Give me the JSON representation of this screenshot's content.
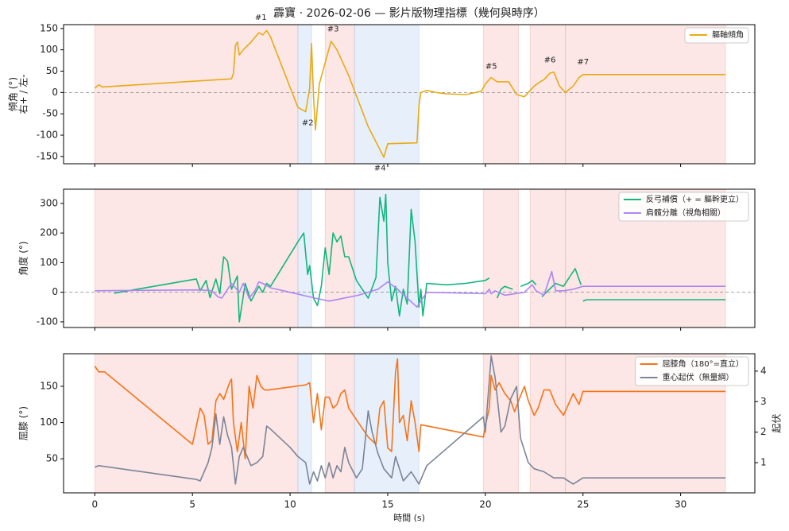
{
  "title": "霹寶 · 2026-02-06 — 影片版物理指標（幾何與時序）",
  "chart_data": [
    {
      "type": "line",
      "ylabel": [
        "傾角 (°)",
        "右+ / 左-"
      ],
      "xlim": [
        -1.6,
        33.8
      ],
      "xticks": [
        0,
        5,
        10,
        15,
        20,
        25,
        30
      ],
      "ylim": [
        -167,
        159
      ],
      "yticks": [
        -150,
        -100,
        -50,
        0,
        50,
        100,
        150
      ],
      "zeroline": true,
      "legend": "upper right",
      "spans": [
        {
          "start": 0,
          "end": 10.4,
          "color": "#f4a6a6"
        },
        {
          "start": 10.4,
          "end": 11.1,
          "color": "#a9c4f0"
        },
        {
          "start": 11.8,
          "end": 13.3,
          "color": "#f4a6a6"
        },
        {
          "start": 13.3,
          "end": 16.6,
          "color": "#a9c4f0"
        },
        {
          "start": 19.9,
          "end": 21.7,
          "color": "#f4a6a6"
        },
        {
          "start": 22.3,
          "end": 24.1,
          "color": "#f4a6a6"
        },
        {
          "start": 24.1,
          "end": 32.3,
          "color": "#f4a6a6"
        }
      ],
      "annotations": [
        {
          "text": "#1",
          "x": 8.5,
          "y": 176
        },
        {
          "text": "#2",
          "x": 10.9,
          "y": -71
        },
        {
          "text": "#3",
          "x": 12.2,
          "y": 149
        },
        {
          "text": "#4",
          "x": 14.6,
          "y": -177
        },
        {
          "text": "#5",
          "x": 20.3,
          "y": 61
        },
        {
          "text": "#6",
          "x": 23.3,
          "y": 76
        },
        {
          "text": "#7",
          "x": 25.0,
          "y": 71
        }
      ],
      "series": [
        {
          "name": "軀軸傾角",
          "color": "#e8ab14",
          "x": [
            0,
            0.2,
            0.4,
            7,
            7.1,
            7.2,
            7.3,
            7.4,
            7.6,
            8,
            8.4,
            8.6,
            8.8,
            9,
            10.4,
            10.8,
            11.0,
            11.1,
            11.2,
            11.3,
            11.5,
            12.1,
            12.4,
            13,
            14,
            14.8,
            15,
            16.5,
            16.6,
            16.7,
            17,
            17.5,
            18,
            19,
            19.5,
            19.8,
            20,
            20.3,
            20.6,
            21.2,
            21.6,
            22,
            22.5,
            22.8,
            23,
            23.3,
            23.5,
            23.8,
            24.1,
            24.5,
            24.8,
            25,
            32.3
          ],
          "values": [
            10,
            18,
            13,
            32,
            45,
            110,
            118,
            88,
            100,
            118,
            140,
            135,
            145,
            130,
            -35,
            -45,
            10,
            115,
            -10,
            -88,
            20,
            120,
            100,
            40,
            -80,
            -152,
            -120,
            -118,
            -30,
            0,
            5,
            0,
            -3,
            -5,
            0,
            3,
            20,
            35,
            25,
            25,
            -5,
            -10,
            15,
            25,
            30,
            45,
            48,
            15,
            0,
            15,
            35,
            42,
            42
          ]
        }
      ]
    },
    {
      "type": "line",
      "ylabel": [
        "角度 (°)"
      ],
      "xlim": [
        -1.6,
        33.8
      ],
      "xticks": [
        0,
        5,
        10,
        15,
        20,
        25,
        30
      ],
      "ylim": [
        -119,
        348
      ],
      "yticks": [
        -100,
        0,
        100,
        200,
        300
      ],
      "zeroline": true,
      "legend": "upper right",
      "series": [
        {
          "name": "反弓補償（+ = 軀幹更立）",
          "color": "#13b57e",
          "x": [
            1.0,
            5.2,
            5.4,
            5.7,
            5.9,
            6.2,
            6.4,
            6.6,
            6.8,
            7.0,
            7.3,
            7.4,
            7.7,
            8.0,
            8.4,
            8.6,
            8.8,
            9.0,
            10.4,
            10.7,
            10.9,
            11.0,
            11.2,
            11.4,
            11.6,
            11.8,
            12.0,
            12.2,
            12.4,
            12.6,
            12.8,
            13.0,
            13.4,
            14.0,
            14.4,
            14.6,
            14.8,
            14.9,
            15.0,
            15.2,
            15.4,
            15.6,
            15.8,
            16.0,
            16.2,
            16.4,
            16.6,
            16.7,
            16.8,
            17.0,
            18.0,
            19.0,
            19.5,
            20.0,
            20.2,
            null,
            20.6,
            20.8,
            21.0,
            21.4,
            null,
            21.8,
            22.2,
            22.4,
            22.6,
            null,
            22.9,
            23.2,
            23.6,
            24.0,
            24.3,
            24.6,
            24.9,
            null,
            25.0,
            25.2,
            32.3
          ],
          "values": [
            -3,
            45,
            5,
            40,
            -18,
            45,
            -5,
            120,
            105,
            10,
            55,
            -100,
            30,
            -30,
            20,
            0,
            30,
            20,
            170,
            200,
            60,
            90,
            -20,
            -45,
            20,
            150,
            60,
            200,
            170,
            190,
            120,
            120,
            40,
            -20,
            50,
            320,
            240,
            330,
            100,
            -30,
            20,
            -80,
            10,
            -40,
            280,
            170,
            -50,
            10,
            -80,
            30,
            25,
            30,
            35,
            40,
            48,
            null,
            -20,
            10,
            20,
            10,
            null,
            20,
            30,
            40,
            25,
            null,
            -15,
            5,
            30,
            20,
            50,
            80,
            25,
            null,
            -30,
            -25,
            -25
          ]
        },
        {
          "name": "肩髖分離（視角相關）",
          "color": "#ad86f2",
          "x": [
            0,
            5.4,
            6.0,
            6.3,
            6.5,
            7.0,
            7.2,
            7.4,
            7.6,
            7.9,
            8.2,
            8.4,
            8.6,
            9,
            10,
            11.3,
            12.0,
            13.5,
            14.5,
            15.0,
            15.5,
            16.0,
            16.5,
            16.7,
            17,
            19,
            20,
            20.2,
            20.3,
            20.5,
            21,
            22.0,
            22.4,
            22.6,
            23,
            23.4,
            23.6,
            24,
            24.5,
            25,
            32.3
          ],
          "values": [
            5,
            8,
            5,
            -15,
            -20,
            30,
            15,
            0,
            30,
            -20,
            5,
            35,
            30,
            15,
            0,
            -20,
            -30,
            -10,
            10,
            35,
            10,
            -20,
            -50,
            -30,
            0,
            -3,
            -5,
            10,
            -5,
            5,
            -10,
            0,
            25,
            5,
            -10,
            70,
            5,
            5,
            10,
            20,
            20
          ]
        }
      ]
    },
    {
      "type": "line",
      "ylabel": [
        "屈膝 (°)"
      ],
      "y2label": "起伏",
      "xlabel": "時間 (s)",
      "show_xticklabels": true,
      "xlim": [
        -1.6,
        33.8
      ],
      "xticks": [
        0,
        5,
        10,
        15,
        20,
        25,
        30
      ],
      "ylim": [
        3,
        195
      ],
      "yticks": [
        50,
        100,
        150
      ],
      "y2lim": [
        0.01,
        4.57
      ],
      "y2ticks": [
        1,
        2,
        3,
        4
      ],
      "legend": "upper right",
      "series": [
        {
          "name": "屈膝角（180°=直立）",
          "color": "#f57418",
          "x": [
            0,
            0.2,
            0.5,
            5.0,
            5.2,
            5.4,
            5.6,
            5.8,
            6.0,
            6.2,
            6.4,
            6.6,
            6.9,
            7.0,
            7.1,
            7.3,
            7.5,
            7.7,
            7.9,
            8.1,
            8.3,
            8.5,
            8.7,
            8.9,
            10.8,
            11.0,
            11.2,
            11.4,
            11.6,
            11.8,
            12.0,
            12.2,
            12.4,
            12.6,
            12.8,
            13.0,
            14.0,
            14.4,
            14.6,
            14.8,
            15.0,
            15.2,
            15.4,
            15.5,
            15.6,
            15.8,
            16.0,
            16.2,
            16.4,
            16.6,
            16.7,
            19.9,
            20.0,
            20.2,
            20.3,
            20.5,
            20.7,
            21.0,
            21.3,
            21.5,
            21.7,
            22.0,
            22.2,
            22.5,
            22.7,
            23.0,
            23.3,
            23.6,
            24.0,
            24.5,
            24.8,
            25.0,
            32.3
          ],
          "values": [
            178,
            170,
            170,
            70,
            95,
            120,
            110,
            70,
            75,
            130,
            140,
            132,
            155,
            160,
            100,
            60,
            100,
            50,
            150,
            120,
            165,
            150,
            145,
            145,
            152,
            155,
            100,
            140,
            90,
            135,
            135,
            120,
            125,
            140,
            145,
            120,
            80,
            70,
            120,
            130,
            65,
            60,
            170,
            188,
            100,
            110,
            75,
            130,
            100,
            60,
            97,
            80,
            95,
            120,
            165,
            145,
            155,
            140,
            130,
            115,
            130,
            150,
            130,
            110,
            120,
            145,
            145,
            125,
            110,
            140,
            125,
            143,
            143
          ]
        },
        {
          "name": "重心起伏（無量綱）",
          "color": "#7b8597",
          "axis": "y2",
          "x": [
            0,
            0.2,
            5.2,
            5.4,
            5.8,
            6.0,
            6.2,
            6.4,
            6.6,
            6.8,
            7.0,
            7.2,
            7.4,
            7.6,
            8.0,
            8.3,
            8.6,
            8.8,
            9.0,
            10,
            10.4,
            10.8,
            11.0,
            11.2,
            11.4,
            11.6,
            11.8,
            12.0,
            12.2,
            12.4,
            12.6,
            12.8,
            13.0,
            13.4,
            13.7,
            14.0,
            14.2,
            14.5,
            14.8,
            15.2,
            15.4,
            15.8,
            16.2,
            16.6,
            17,
            19.9,
            20.0,
            20.3,
            20.5,
            20.8,
            21.0,
            21.3,
            21.6,
            21.8,
            22.2,
            22.5,
            23.0,
            23.5,
            24.0,
            24.5,
            25,
            32.3
          ],
          "values": [
            0.85,
            0.9,
            0.45,
            0.4,
            1.0,
            1.5,
            2.6,
            1.6,
            2.5,
            1.9,
            1.5,
            0.3,
            1.2,
            1.5,
            0.9,
            1.0,
            1.2,
            2.2,
            2.1,
            1.5,
            1.2,
            1.0,
            0.3,
            0.7,
            0.4,
            0.9,
            0.5,
            1.0,
            0.5,
            0.9,
            0.7,
            1.5,
            1.0,
            0.5,
            0.8,
            2.7,
            2.0,
            1.3,
            0.8,
            0.5,
            1.2,
            0.4,
            0.7,
            0.3,
            0.9,
            2.5,
            2.0,
            4.5,
            3.8,
            2.0,
            2.2,
            3.1,
            3.5,
            1.8,
            1.0,
            0.8,
            0.7,
            0.5,
            0.5,
            0.3,
            0.5,
            0.5
          ]
        }
      ]
    }
  ]
}
